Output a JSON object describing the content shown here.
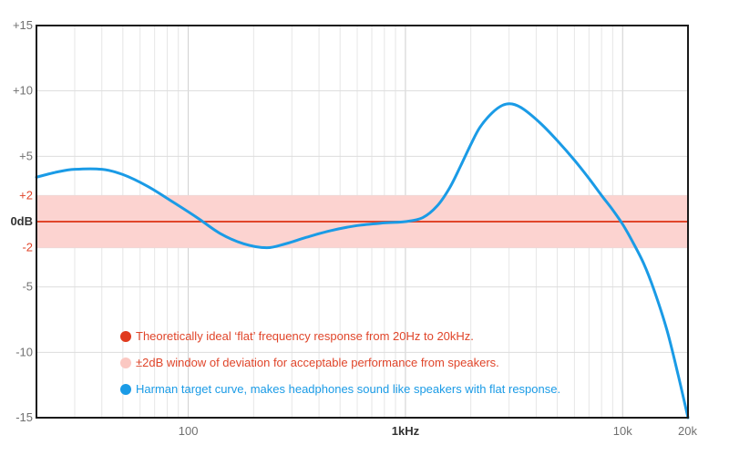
{
  "chart_data": {
    "type": "line",
    "x_scale": "log",
    "xlim": [
      20,
      20000
    ],
    "ylim": [
      -15,
      15
    ],
    "grid": true,
    "x_ticks": [
      {
        "value": 100,
        "label": "100",
        "emphasis": false
      },
      {
        "value": 1000,
        "label": "1kHz",
        "emphasis": true
      },
      {
        "value": 10000,
        "label": "10k",
        "emphasis": false
      },
      {
        "value": 20000,
        "label": "20k",
        "emphasis": false
      }
    ],
    "y_ticks": [
      {
        "value": 15,
        "label": "+15",
        "style": "normal"
      },
      {
        "value": 10,
        "label": "+10",
        "style": "normal"
      },
      {
        "value": 5,
        "label": "+5",
        "style": "normal"
      },
      {
        "value": 2,
        "label": "+2",
        "style": "red"
      },
      {
        "value": 0,
        "label": "0dB",
        "style": "bold"
      },
      {
        "value": -2,
        "label": "-2",
        "style": "red"
      },
      {
        "value": -5,
        "label": "-5",
        "style": "normal"
      },
      {
        "value": -10,
        "label": "-10",
        "style": "normal"
      },
      {
        "value": -15,
        "label": "-15",
        "style": "normal"
      }
    ],
    "band": {
      "y0": -2,
      "y1": 2,
      "color": "#fcd3d0"
    },
    "reference_line": {
      "y": 0,
      "color": "#e0452a"
    },
    "series": [
      {
        "color": "#1a9be6",
        "points": [
          {
            "x": 20,
            "y": 3.4
          },
          {
            "x": 25,
            "y": 3.8
          },
          {
            "x": 30,
            "y": 4.0
          },
          {
            "x": 40,
            "y": 4.0
          },
          {
            "x": 50,
            "y": 3.6
          },
          {
            "x": 65,
            "y": 2.7
          },
          {
            "x": 85,
            "y": 1.5
          },
          {
            "x": 110,
            "y": 0.3
          },
          {
            "x": 140,
            "y": -0.9
          },
          {
            "x": 180,
            "y": -1.7
          },
          {
            "x": 230,
            "y": -2.0
          },
          {
            "x": 280,
            "y": -1.7
          },
          {
            "x": 350,
            "y": -1.2
          },
          {
            "x": 450,
            "y": -0.7
          },
          {
            "x": 600,
            "y": -0.3
          },
          {
            "x": 800,
            "y": -0.1
          },
          {
            "x": 1000,
            "y": 0.0
          },
          {
            "x": 1200,
            "y": 0.3
          },
          {
            "x": 1400,
            "y": 1.2
          },
          {
            "x": 1600,
            "y": 2.6
          },
          {
            "x": 1800,
            "y": 4.3
          },
          {
            "x": 2000,
            "y": 5.9
          },
          {
            "x": 2200,
            "y": 7.2
          },
          {
            "x": 2500,
            "y": 8.3
          },
          {
            "x": 2800,
            "y": 8.9
          },
          {
            "x": 3100,
            "y": 9.0
          },
          {
            "x": 3500,
            "y": 8.6
          },
          {
            "x": 4200,
            "y": 7.5
          },
          {
            "x": 5000,
            "y": 6.2
          },
          {
            "x": 6000,
            "y": 4.7
          },
          {
            "x": 7000,
            "y": 3.3
          },
          {
            "x": 8000,
            "y": 2.0
          },
          {
            "x": 9000,
            "y": 0.9
          },
          {
            "x": 10000,
            "y": -0.2
          },
          {
            "x": 11000,
            "y": -1.4
          },
          {
            "x": 12500,
            "y": -3.2
          },
          {
            "x": 14000,
            "y": -5.3
          },
          {
            "x": 16000,
            "y": -8.3
          },
          {
            "x": 18000,
            "y": -11.7
          },
          {
            "x": 20000,
            "y": -15.0
          }
        ]
      }
    ]
  },
  "legend": {
    "items": [
      {
        "text": "Theoretically ideal ‘flat’ frequency response from 20Hz to 20kHz.",
        "dot_color": "#e03a1e",
        "text_color": "#e0452a"
      },
      {
        "text": "±2dB window of deviation for acceptable performance from speakers.",
        "dot_color": "#fbc8c2",
        "text_color": "#e0452a"
      },
      {
        "text": "Harman target curve, makes headphones sound like speakers with flat response.",
        "dot_color": "#1a9be6",
        "text_color": "#1a9be6"
      }
    ]
  }
}
